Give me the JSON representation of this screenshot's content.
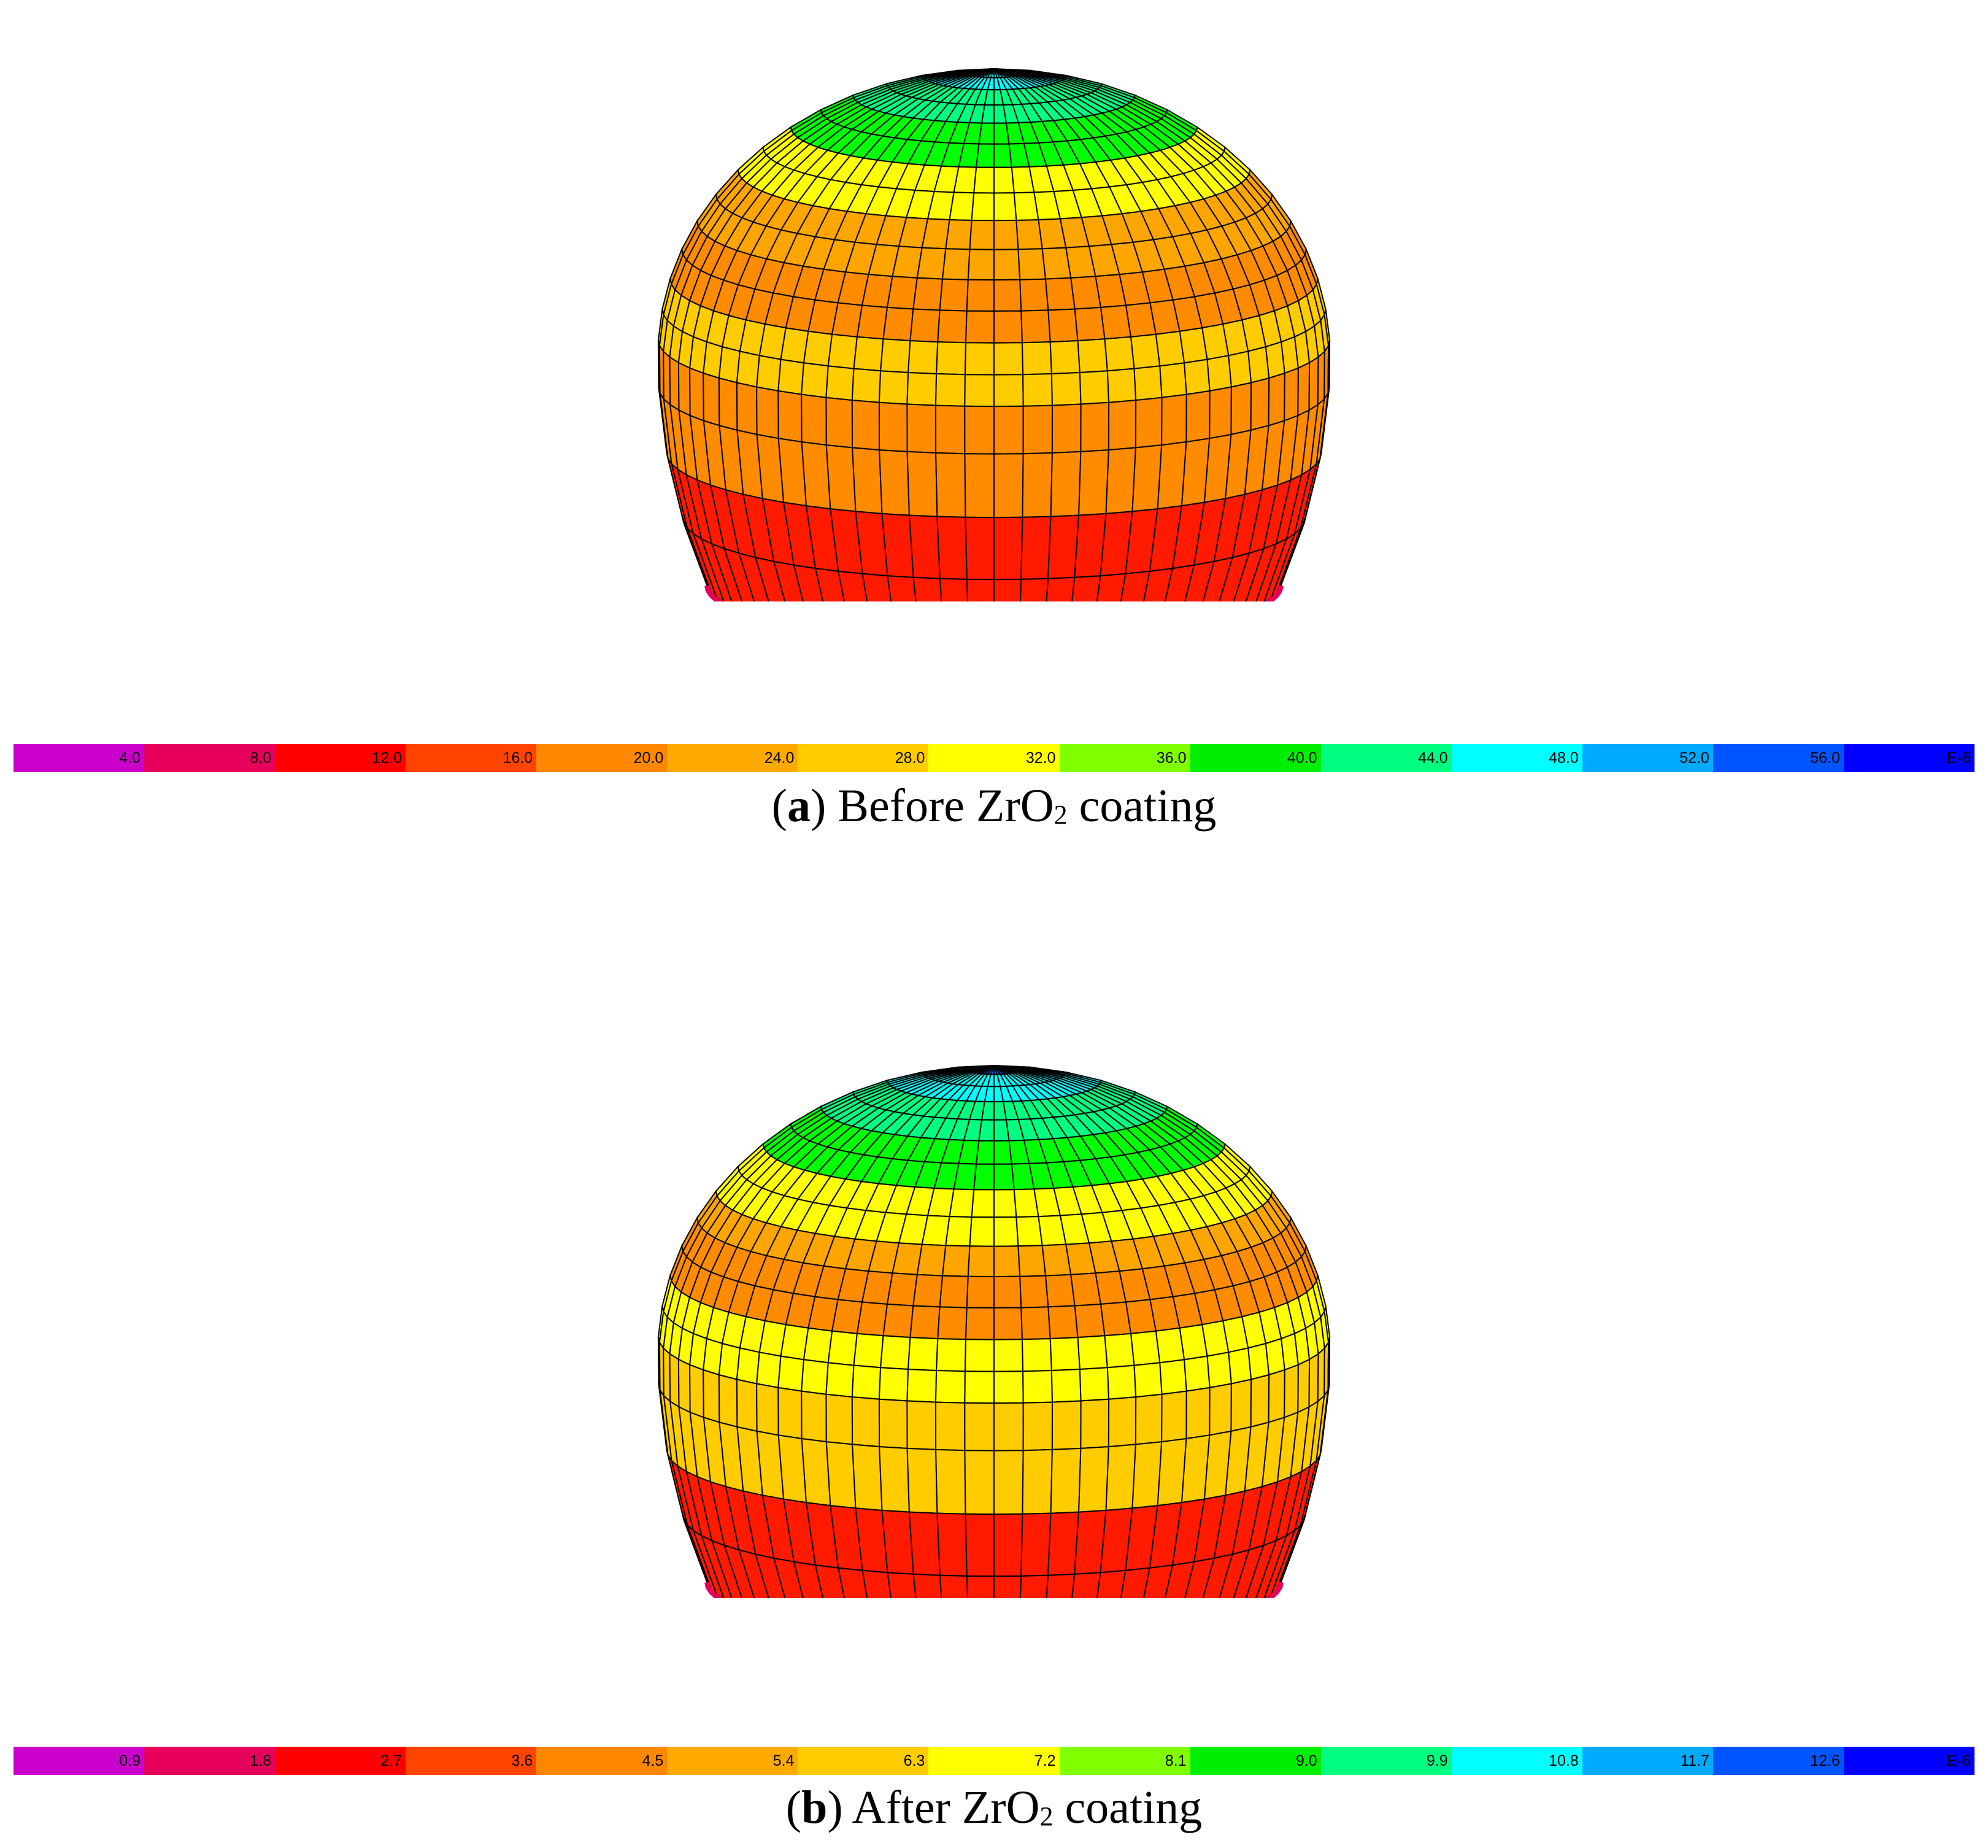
{
  "panels": [
    {
      "id": "a",
      "caption": {
        "open": "(",
        "letter": "a",
        "close": ")",
        "pre": " Before ZrO",
        "sub": "2",
        "post": " coating"
      },
      "legend": [
        "4.0",
        "8.0",
        "12.0",
        "16.0",
        "20.0",
        "24.0",
        "28.0",
        "32.0",
        "36.0",
        "40.0",
        "44.0",
        "48.0",
        "52.0",
        "56.0",
        "E-6"
      ],
      "bands": [
        "#ff1a00",
        "#ff8c00",
        "#ffcc00",
        "#ff8c00",
        "#ffa500",
        "#ffff00",
        "#00ff00",
        "#00ff80",
        "#00ffff"
      ]
    },
    {
      "id": "b",
      "caption": {
        "open": "(",
        "letter": "b",
        "close": ")",
        "pre": " After ZrO",
        "sub": "2",
        "post": " coating"
      },
      "legend": [
        "0.9",
        "1.8",
        "2.7",
        "3.6",
        "4.5",
        "5.4",
        "6.3",
        "7.2",
        "8.1",
        "9.0",
        "9.9",
        "10.8",
        "11.7",
        "12.6",
        "E-6"
      ],
      "bands": [
        "#ff1a00",
        "#ffcc00",
        "#ffff00",
        "#ff8c00",
        "#ffa500",
        "#ffff00",
        "#00ff00",
        "#00ff80",
        "#00ffff",
        "#0066ff"
      ]
    }
  ],
  "legend_colors": [
    "#cc00cc",
    "#e6005c",
    "#ff0000",
    "#ff4400",
    "#ff8800",
    "#ffaa00",
    "#ffcc00",
    "#ffff00",
    "#80ff00",
    "#00ee00",
    "#00ff80",
    "#00ffff",
    "#00aaff",
    "#0055ff",
    "#0000ff"
  ]
}
